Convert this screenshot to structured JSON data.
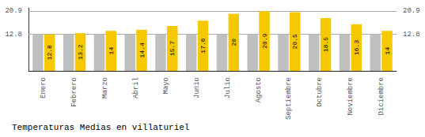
{
  "chart_data": {
    "type": "bar",
    "title": "Temperaturas Medias en villaturiel",
    "categories": [
      "Enero",
      "Febrero",
      "Marzo",
      "Abril",
      "Mayo",
      "Junio",
      "Julio",
      "Agosto",
      "Septiembre",
      "Octubre",
      "Noviembre",
      "Diciembre"
    ],
    "series": [
      {
        "color": "#C0C0C0",
        "values": [
          12.8,
          12.8,
          12.8,
          12.8,
          12.8,
          12.8,
          12.8,
          12.8,
          12.8,
          12.8,
          12.8,
          12.8
        ]
      },
      {
        "color": "#F5C800",
        "values": [
          12.8,
          13.2,
          14.0,
          14.4,
          15.7,
          17.6,
          20.0,
          20.9,
          20.5,
          18.5,
          16.3,
          14.0
        ],
        "data_labels": true
      }
    ],
    "ylim": [
      0,
      22.0495
    ],
    "yticks": [
      12.8,
      20.9
    ],
    "y2lim": [
      0,
      22.0495
    ],
    "y2ticks": [
      12.8,
      20.9
    ],
    "grid": true
  }
}
